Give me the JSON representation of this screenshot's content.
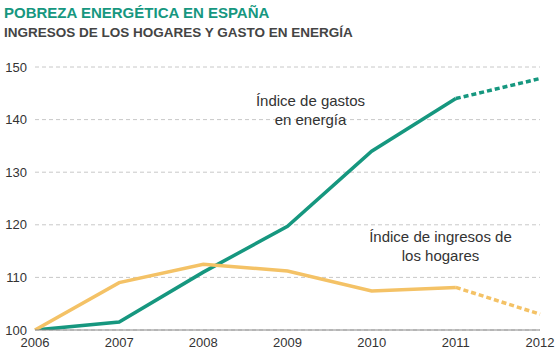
{
  "chart_data": {
    "type": "line",
    "title": "POBREZA ENERGÉTICA EN ESPAÑA",
    "subtitle": "INGRESOS DE LOS HOGARES Y GASTO EN ENERGÍA",
    "categories": [
      "2006",
      "2007",
      "2008",
      "2009",
      "2010",
      "2011",
      "2012"
    ],
    "series": [
      {
        "name": "Índice de gastos en energía",
        "color": "#16977f",
        "line_style": "solid",
        "values": [
          100,
          101.5,
          111,
          119.7,
          134,
          144,
          null
        ]
      },
      {
        "name": "Índice de gastos en energía",
        "color": "#16977f",
        "line_style": "dashed",
        "values": [
          null,
          null,
          null,
          null,
          null,
          144,
          147.8
        ]
      },
      {
        "name": "Índice de ingresos de los hogares",
        "color": "#f4c266",
        "line_style": "solid",
        "values": [
          100,
          109,
          112.5,
          111.2,
          107.4,
          108.1,
          null
        ]
      },
      {
        "name": "Índice de ingresos de los hogares",
        "color": "#f4c266",
        "line_style": "dashed",
        "values": [
          null,
          null,
          null,
          null,
          null,
          108.1,
          103
        ]
      }
    ],
    "ylim": [
      100,
      150
    ],
    "yticks": [
      100,
      110,
      120,
      130,
      140,
      150
    ],
    "grid": true
  }
}
